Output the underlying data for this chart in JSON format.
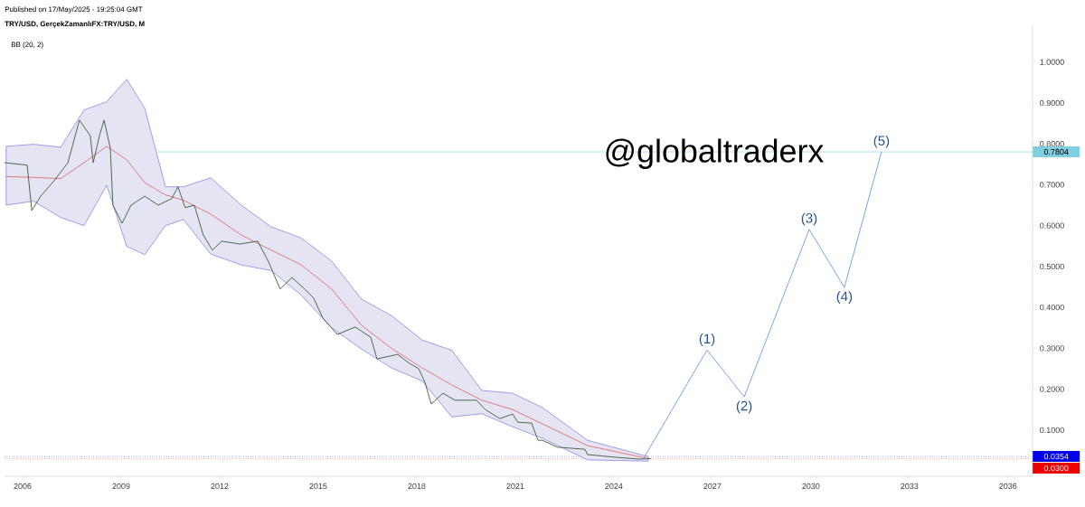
{
  "chart_data": {
    "type": "line",
    "title": "TRY/USD, GerçekZamanlıFX:TRY/USD, M",
    "subtitle": "BB (20, 2)",
    "xlim": [
      2005.45,
      2036.75
    ],
    "ylim": [
      -0.013,
      1.09
    ],
    "xticks": [
      2006,
      2009,
      2012,
      2015,
      2018,
      2021,
      2024,
      2027,
      2030,
      2033,
      2036
    ],
    "yticks": [
      {
        "value": 0.1,
        "label": "0.1000"
      },
      {
        "value": 0.2,
        "label": "0.2000"
      },
      {
        "value": 0.3,
        "label": "0.3000"
      },
      {
        "value": 0.4,
        "label": "0.4000"
      },
      {
        "value": 0.5,
        "label": "0.5000"
      },
      {
        "value": 0.6,
        "label": "0.6000"
      },
      {
        "value": 0.7,
        "label": "0.7000"
      },
      {
        "value": 0.8,
        "label": "0.8000"
      },
      {
        "value": 0.9,
        "label": "0.9000"
      },
      {
        "value": 1.0,
        "label": "1.0000"
      }
    ],
    "tick_labels": "x",
    "series": [
      {
        "color": "#e07070",
        "x": [
          2005.5,
          2006.33,
          2007.16,
          2007.87,
          2008.56,
          2009.17,
          2009.72,
          2010.35,
          2010.9,
          2011.73,
          2012.66,
          2013.57,
          2014.48,
          2015.41,
          2016.32,
          2017.23,
          2018.17,
          2019.07,
          2019.98,
          2020.92,
          2021.83,
          2023.2,
          2025.05
        ],
        "values": [
          0.72,
          0.718,
          0.715,
          0.754,
          0.794,
          0.761,
          0.705,
          0.675,
          0.662,
          0.628,
          0.577,
          0.54,
          0.504,
          0.445,
          0.356,
          0.3,
          0.252,
          0.21,
          0.173,
          0.15,
          0.115,
          0.062,
          0.03
        ],
        "upper": [
          0.794,
          0.799,
          0.792,
          0.883,
          0.903,
          0.958,
          0.887,
          0.695,
          0.695,
          0.717,
          0.65,
          0.597,
          0.57,
          0.513,
          0.42,
          0.38,
          0.32,
          0.295,
          0.197,
          0.19,
          0.155,
          0.075,
          0.035
        ],
        "lower": [
          0.65,
          0.66,
          0.62,
          0.6,
          0.699,
          0.549,
          0.529,
          0.6,
          0.615,
          0.53,
          0.504,
          0.49,
          0.43,
          0.35,
          0.298,
          0.252,
          0.22,
          0.132,
          0.14,
          0.108,
          0.08,
          0.027,
          0.024
        ]
      },
      {
        "color": "#3c5a3c",
        "x": [
          2005.45,
          2006.14,
          2006.28,
          2006.55,
          2006.96,
          2007.38,
          2007.73,
          2008.06,
          2008.15,
          2008.34,
          2008.48,
          2008.67,
          2008.75,
          2009.03,
          2009.3,
          2009.72,
          2010.13,
          2010.54,
          2010.73,
          2010.95,
          2011.23,
          2011.5,
          2011.78,
          2012.06,
          2012.61,
          2013.16,
          2013.49,
          2013.84,
          2014.2,
          2014.59,
          2014.86,
          2015.14,
          2015.58,
          2016.13,
          2016.6,
          2016.79,
          2017.42,
          2017.78,
          2018.06,
          2018.25,
          2018.44,
          2018.8,
          2019.16,
          2019.82,
          2020.09,
          2020.53,
          2020.92,
          2021.08,
          2021.5,
          2021.69,
          2021.83,
          2022.29,
          2023.12,
          2023.2,
          2024.11,
          2024.77,
          2025.13
        ],
        "values": [
          0.754,
          0.748,
          0.637,
          0.672,
          0.71,
          0.754,
          0.858,
          0.82,
          0.754,
          0.82,
          0.858,
          0.79,
          0.65,
          0.606,
          0.65,
          0.672,
          0.65,
          0.666,
          0.695,
          0.644,
          0.65,
          0.577,
          0.54,
          0.562,
          0.555,
          0.562,
          0.511,
          0.445,
          0.473,
          0.445,
          0.423,
          0.374,
          0.334,
          0.352,
          0.327,
          0.274,
          0.285,
          0.263,
          0.25,
          0.217,
          0.164,
          0.19,
          0.173,
          0.173,
          0.15,
          0.128,
          0.139,
          0.119,
          0.117,
          0.075,
          0.075,
          0.058,
          0.053,
          0.04,
          0.033,
          0.029,
          0.03
        ]
      },
      {
        "color": "#6a9bd8",
        "x": [
          2024.9,
          2026.84,
          2027.97,
          2029.95,
          2031.02,
          2032.15
        ],
        "values": [
          0.03,
          0.296,
          0.181,
          0.591,
          0.449,
          0.7804
        ]
      }
    ],
    "ref_lines": [
      {
        "axis": "y",
        "value": 0.7804,
        "label": "0.7804",
        "color": "#7ecfdf",
        "line_style": "solid"
      },
      {
        "axis": "y",
        "value": 0.0354,
        "label": "0.0354",
        "color": "#0000ee",
        "line_style": "dotted"
      },
      {
        "axis": "y",
        "value": 0.03,
        "label": "0.0300",
        "color": "#ee0000",
        "line_style": "dotted"
      }
    ],
    "annotations": [
      "Published on 17/May/2025 - 19:25:04 GMT",
      "@globaltraderx",
      {
        "text": "(1)",
        "x": 2026.84,
        "y": 0.296
      },
      {
        "text": "(2)",
        "x": 2027.97,
        "y": 0.181
      },
      {
        "text": "(3)",
        "x": 2029.95,
        "y": 0.591
      },
      {
        "text": "(4)",
        "x": 2031.02,
        "y": 0.449
      },
      {
        "text": "(5)",
        "x": 2032.15,
        "y": 0.7804
      }
    ]
  }
}
